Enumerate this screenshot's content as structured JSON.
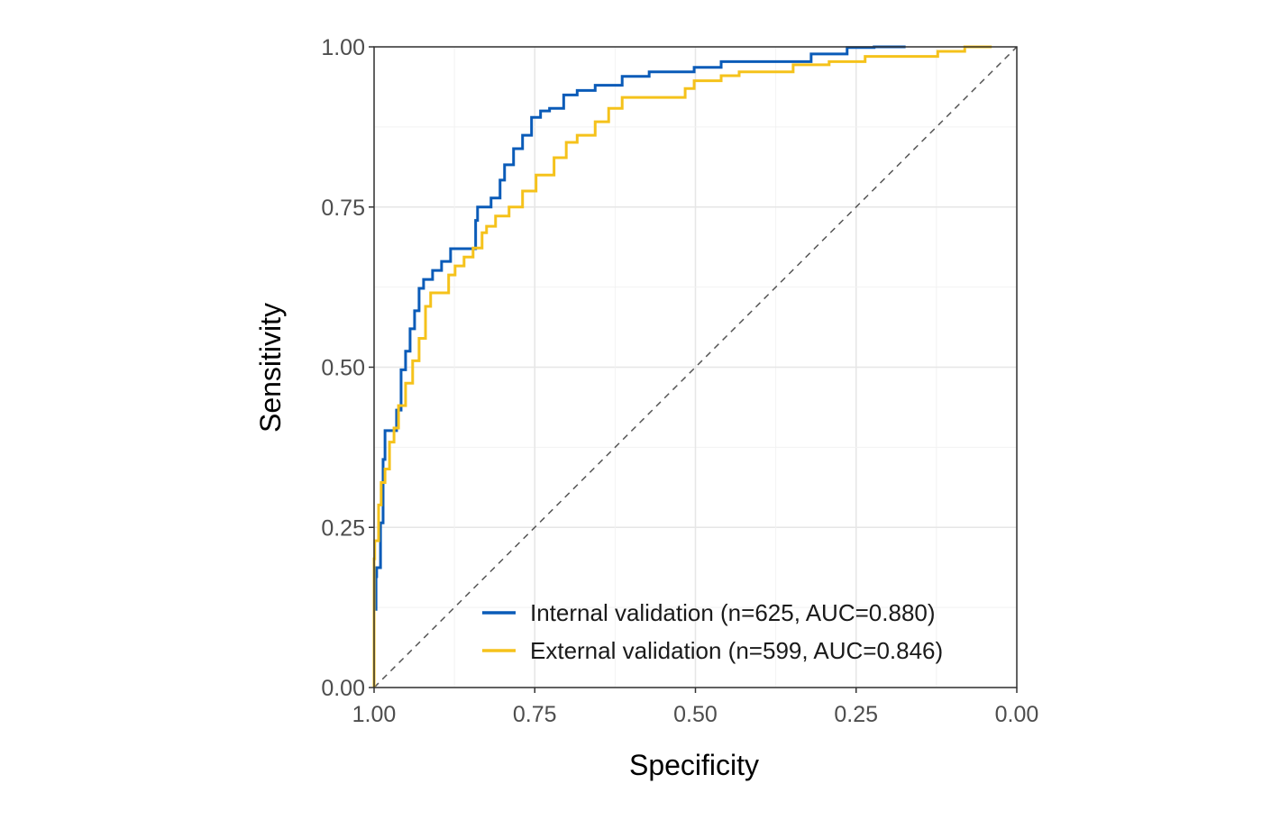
{
  "chart_data": {
    "type": "line",
    "title": "",
    "xlabel": "Specificity",
    "ylabel": "Sensitivity",
    "xlim": [
      1.0,
      0.0
    ],
    "ylim": [
      0.0,
      1.0
    ],
    "x_reversed": true,
    "grid": true,
    "legend_position": "bottom-right",
    "xticks": [
      "1.00",
      "0.75",
      "0.50",
      "0.25",
      "0.00"
    ],
    "yticks": [
      "0.00",
      "0.25",
      "0.50",
      "0.75",
      "1.00"
    ],
    "reference_line": {
      "style": "dashed",
      "color": "#555555",
      "from": [
        1.0,
        0.0
      ],
      "to": [
        0.0,
        1.0
      ]
    },
    "series": [
      {
        "name": "Internal validation (n=625, AUC=0.880)",
        "color": "#0a5bb8",
        "specificity": [
          1.0,
          0.997,
          0.996,
          0.99,
          0.986,
          0.983,
          0.979,
          0.965,
          0.958,
          0.951,
          0.944,
          0.937,
          0.93,
          0.923,
          0.909,
          0.895,
          0.881,
          0.867,
          0.842,
          0.839,
          0.818,
          0.804,
          0.797,
          0.783,
          0.769,
          0.755,
          0.741,
          0.727,
          0.705,
          0.684,
          0.656,
          0.614,
          0.572,
          0.502,
          0.46,
          0.432,
          0.32,
          0.264,
          0.222,
          0.173
        ],
        "sensitivity": [
          0.0,
          0.122,
          0.173,
          0.187,
          0.257,
          0.356,
          0.401,
          0.401,
          0.433,
          0.496,
          0.525,
          0.56,
          0.588,
          0.623,
          0.637,
          0.651,
          0.665,
          0.685,
          0.685,
          0.729,
          0.75,
          0.764,
          0.792,
          0.816,
          0.841,
          0.862,
          0.89,
          0.9,
          0.904,
          0.925,
          0.932,
          0.94,
          0.954,
          0.961,
          0.968,
          0.977,
          0.977,
          0.989,
          0.999,
          1.0
        ]
      },
      {
        "name": "External validation (n=599, AUC=0.846)",
        "color": "#f5c21b",
        "specificity": [
          1.0,
          0.999,
          0.993,
          0.989,
          0.983,
          0.976,
          0.969,
          0.962,
          0.951,
          0.94,
          0.93,
          0.92,
          0.912,
          0.902,
          0.884,
          0.874,
          0.86,
          0.846,
          0.832,
          0.825,
          0.811,
          0.79,
          0.769,
          0.748,
          0.72,
          0.701,
          0.684,
          0.656,
          0.635,
          0.614,
          0.586,
          0.516,
          0.502,
          0.46,
          0.432,
          0.348,
          0.292,
          0.236,
          0.123,
          0.081,
          0.039
        ],
        "sensitivity": [
          0.0,
          0.201,
          0.229,
          0.285,
          0.32,
          0.341,
          0.383,
          0.405,
          0.44,
          0.475,
          0.51,
          0.545,
          0.595,
          0.616,
          0.616,
          0.644,
          0.658,
          0.672,
          0.686,
          0.71,
          0.72,
          0.736,
          0.75,
          0.775,
          0.8,
          0.827,
          0.851,
          0.862,
          0.883,
          0.904,
          0.921,
          0.921,
          0.935,
          0.947,
          0.955,
          0.961,
          0.972,
          0.977,
          0.985,
          0.993,
          1.0
        ]
      }
    ]
  }
}
